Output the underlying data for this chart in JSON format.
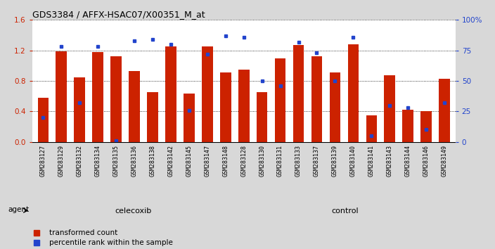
{
  "title": "GDS3384 / AFFX-HSAC07/X00351_M_at",
  "samples": [
    "GSM283127",
    "GSM283129",
    "GSM283132",
    "GSM283134",
    "GSM283135",
    "GSM283136",
    "GSM283138",
    "GSM283142",
    "GSM283145",
    "GSM283147",
    "GSM283148",
    "GSM283128",
    "GSM283130",
    "GSM283131",
    "GSM283133",
    "GSM283137",
    "GSM283139",
    "GSM283140",
    "GSM283141",
    "GSM283143",
    "GSM283144",
    "GSM283146",
    "GSM283149"
  ],
  "transformed_count": [
    0.58,
    1.19,
    0.85,
    1.18,
    1.12,
    0.93,
    0.65,
    1.25,
    0.63,
    1.25,
    0.91,
    0.95,
    0.65,
    1.1,
    1.27,
    1.12,
    0.91,
    1.28,
    0.35,
    0.87,
    0.42,
    0.4,
    0.83
  ],
  "percentile_rank": [
    20,
    78,
    32,
    78,
    1,
    83,
    84,
    80,
    26,
    72,
    87,
    86,
    50,
    46,
    82,
    73,
    50,
    86,
    5,
    30,
    28,
    10,
    32
  ],
  "celecoxib_count": 11,
  "control_count": 12,
  "bar_color": "#cc2200",
  "marker_color": "#2244cc",
  "ylim_left": [
    0,
    1.6
  ],
  "ylim_right": [
    0,
    100
  ],
  "yticks_left": [
    0,
    0.4,
    0.8,
    1.2,
    1.6
  ],
  "yticks_right": [
    0,
    25,
    50,
    75,
    100
  ],
  "background_color": "#d8d8d8",
  "plot_bg_color": "#ffffff",
  "green_celecoxib": "#aaeaaa",
  "green_control": "#55cc55",
  "xtick_bg": "#cccccc"
}
